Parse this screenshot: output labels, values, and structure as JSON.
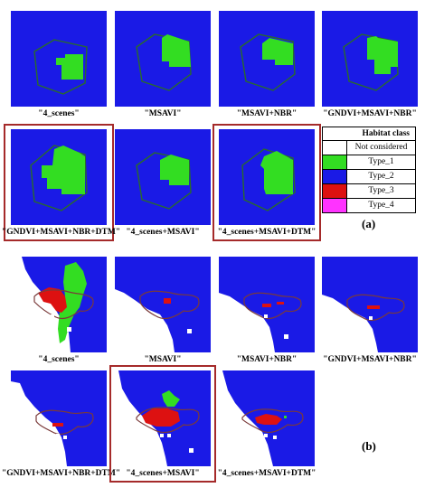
{
  "colors": {
    "not_considered": "#ffffff",
    "type_1": "#33dd22",
    "type_2": "#1a1ae6",
    "type_3": "#dd1111",
    "type_4": "#ff33ff",
    "outline_a": "#2a6b2a",
    "outline_b": "#7a3a3a",
    "highlight": "#a52a2a"
  },
  "panel_a": {
    "captions": [
      "\"4_scenes\"",
      "\"MSAVI\"",
      "\"MSAVI+NBR\"",
      "\"GNDVI+MSAVI+NBR\"",
      "\"GNDVI+MSAVI+NBR+DTM\"",
      "\"4_scenes+MSAVI\"",
      "\"4_scenes+MSAVI+DTM\""
    ],
    "label": "(a)"
  },
  "panel_b": {
    "captions": [
      "\"4_scenes\"",
      "\"MSAVI\"",
      "\"MSAVI+NBR\"",
      "\"GNDVI+MSAVI+NBR\"",
      "\"GNDVI+MSAVI+NBR+DTM\"",
      "\"4_scenes+MSAVI\"",
      "\"4_scenes+MSAVI+DTM\""
    ],
    "label": "(b)"
  },
  "legend": {
    "title": "Habitat class",
    "items": [
      "Not considered",
      "Type_1",
      "Type_2",
      "Type_3",
      "Type_4"
    ]
  }
}
